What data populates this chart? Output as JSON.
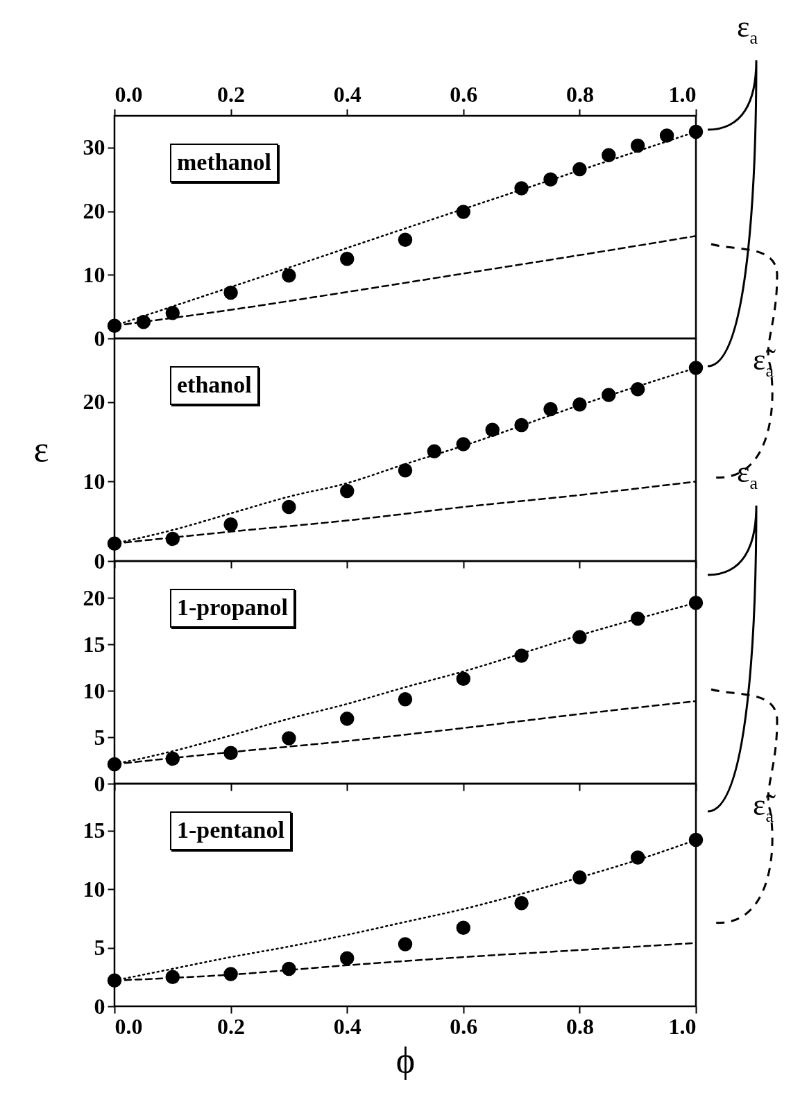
{
  "chart_data": [
    {
      "type": "scatter",
      "annotations": [
        "methanol",
        "ε$_{a}$",
        "ε̃$_{a}$"
      ],
      "xlim": [
        0,
        1
      ],
      "xticks": [
        {
          "value": 0,
          "label": "0.0"
        },
        {
          "value": 0.2,
          "label": "0.2"
        },
        {
          "value": 0.4,
          "label": "0.4"
        },
        {
          "value": 0.6,
          "label": "0.6"
        },
        {
          "value": 0.8,
          "label": "0.8"
        },
        {
          "value": 1,
          "label": "1.0"
        }
      ],
      "ylim": [
        0,
        35
      ],
      "yticks": [
        0,
        10,
        20,
        30
      ],
      "series": [
        {
          "type": "scatter",
          "marker": "circle",
          "color": "#000000",
          "x": [
            0,
            0.05,
            0.1,
            0.2,
            0.3,
            0.4,
            0.5,
            0.6,
            0.7,
            0.75,
            0.8,
            0.85,
            0.9,
            0.95,
            1
          ],
          "values": [
            2.0,
            2.6,
            4.0,
            7.2,
            9.9,
            12.5,
            15.5,
            19.9,
            23.6,
            25.0,
            26.6,
            28.8,
            30.3,
            31.9,
            32.5
          ]
        },
        {
          "type": "line",
          "line_style": "dotted",
          "color": "#000000",
          "x": [
            0,
            0.25,
            0.5,
            0.75,
            1
          ],
          "values": [
            2.0,
            9.6,
            17.3,
            24.9,
            32.5
          ]
        },
        {
          "type": "line",
          "line_style": "dashed",
          "color": "#000000",
          "x": [
            0,
            0.2,
            0.4,
            0.6,
            0.8,
            1
          ],
          "values": [
            2.0,
            4.5,
            7.3,
            10.2,
            13.1,
            16.1
          ]
        }
      ]
    },
    {
      "type": "scatter",
      "annotations": [
        "ethanol"
      ],
      "ylabel": "ε",
      "xlim": [
        0,
        1
      ],
      "xticks": [
        {
          "value": 0,
          "label": null
        },
        {
          "value": 0.2,
          "label": null
        },
        {
          "value": 0.4,
          "label": null
        },
        {
          "value": 0.6,
          "label": null
        },
        {
          "value": 0.8,
          "label": null
        },
        {
          "value": 1,
          "label": null
        }
      ],
      "tick_labels": "y",
      "ylim": [
        0,
        28
      ],
      "yticks": [
        0,
        10,
        20
      ],
      "series": [
        {
          "type": "scatter",
          "marker": "circle",
          "color": "#000000",
          "x": [
            0,
            0.1,
            0.2,
            0.3,
            0.4,
            0.5,
            0.55,
            0.6,
            0.65,
            0.7,
            0.75,
            0.8,
            0.85,
            0.9,
            1
          ],
          "values": [
            2.2,
            2.8,
            4.6,
            6.8,
            8.8,
            11.4,
            13.8,
            14.7,
            16.5,
            17.1,
            19.1,
            19.7,
            20.9,
            21.6,
            24.3
          ]
        },
        {
          "type": "line",
          "line_style": "dotted",
          "color": "#000000",
          "x": [
            0,
            0.1,
            0.2,
            0.3,
            0.4,
            0.5,
            0.6,
            0.8,
            1
          ],
          "values": [
            2.2,
            3.9,
            6.0,
            8.1,
            9.8,
            12.2,
            14.5,
            19.6,
            24.3
          ]
        },
        {
          "type": "line",
          "line_style": "dashed",
          "color": "#000000",
          "x": [
            0,
            0.2,
            0.4,
            0.6,
            0.8,
            1
          ],
          "values": [
            2.2,
            3.7,
            5.1,
            6.8,
            8.3,
            10.0
          ]
        }
      ]
    },
    {
      "type": "scatter",
      "annotations": [
        "1-propanol",
        "ε$_{a}$",
        "ε̃$_{a}$"
      ],
      "xlim": [
        0,
        1
      ],
      "xticks": [
        {
          "value": 0,
          "label": null
        },
        {
          "value": 0.2,
          "label": null
        },
        {
          "value": 0.4,
          "label": null
        },
        {
          "value": 0.6,
          "label": null
        },
        {
          "value": 0.8,
          "label": null
        },
        {
          "value": 1,
          "label": null
        }
      ],
      "tick_labels": "y",
      "ylim": [
        0,
        24
      ],
      "yticks": [
        0,
        5,
        10,
        15,
        20
      ],
      "series": [
        {
          "type": "scatter",
          "marker": "circle",
          "color": "#000000",
          "x": [
            0,
            0.1,
            0.2,
            0.3,
            0.4,
            0.5,
            0.6,
            0.7,
            0.8,
            0.9,
            1
          ],
          "values": [
            2.1,
            2.7,
            3.3,
            4.9,
            7.0,
            9.1,
            11.3,
            13.8,
            15.8,
            17.8,
            19.5
          ]
        },
        {
          "type": "line",
          "line_style": "dotted",
          "color": "#000000",
          "x": [
            0,
            0.1,
            0.2,
            0.3,
            0.4,
            0.5,
            0.6,
            0.8,
            1
          ],
          "values": [
            2.1,
            3.5,
            5.2,
            7.0,
            8.6,
            10.4,
            12.1,
            16.0,
            19.5
          ]
        },
        {
          "type": "line",
          "line_style": "dashed",
          "color": "#000000",
          "x": [
            0,
            0.2,
            0.4,
            0.6,
            0.8,
            1
          ],
          "values": [
            2.1,
            3.4,
            4.6,
            6.0,
            7.5,
            8.9
          ]
        }
      ]
    },
    {
      "type": "scatter",
      "annotations": [
        "1-pentanol"
      ],
      "xlabel": "ϕ",
      "xlim": [
        0,
        1
      ],
      "xticks": [
        {
          "value": 0,
          "label": "0.0"
        },
        {
          "value": 0.2,
          "label": "0.2"
        },
        {
          "value": 0.4,
          "label": "0.4"
        },
        {
          "value": 0.6,
          "label": "0.6"
        },
        {
          "value": 0.8,
          "label": "0.8"
        },
        {
          "value": 1,
          "label": "1.0"
        }
      ],
      "ylim": [
        0,
        19
      ],
      "yticks": [
        0,
        5,
        10,
        15
      ],
      "series": [
        {
          "type": "scatter",
          "marker": "circle",
          "color": "#000000",
          "x": [
            0,
            0.1,
            0.2,
            0.3,
            0.4,
            0.5,
            0.6,
            0.7,
            0.8,
            0.9,
            1
          ],
          "values": [
            2.2,
            2.5,
            2.75,
            3.2,
            4.1,
            5.3,
            6.7,
            8.8,
            11.0,
            12.7,
            14.2
          ]
        },
        {
          "type": "line",
          "line_style": "dotted",
          "color": "#000000",
          "x": [
            0,
            0.1,
            0.2,
            0.3,
            0.4,
            0.5,
            0.6,
            0.7,
            0.8,
            0.9,
            1
          ],
          "values": [
            2.2,
            3.2,
            4.2,
            5.1,
            6.1,
            7.2,
            8.3,
            9.6,
            11.0,
            12.5,
            14.2
          ]
        },
        {
          "type": "line",
          "line_style": "dashed",
          "color": "#000000",
          "x": [
            0,
            0.2,
            0.4,
            0.6,
            0.8,
            1
          ],
          "values": [
            2.2,
            2.7,
            3.5,
            4.2,
            4.8,
            5.4
          ]
        }
      ]
    }
  ]
}
